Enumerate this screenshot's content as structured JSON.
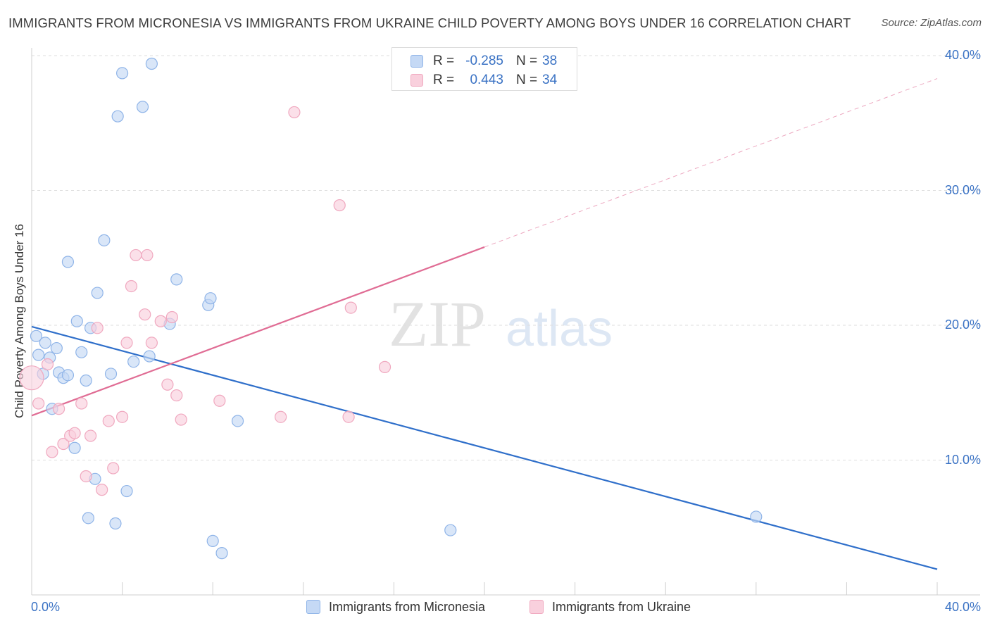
{
  "title": "IMMIGRANTS FROM MICRONESIA VS IMMIGRANTS FROM UKRAINE CHILD POVERTY AMONG BOYS UNDER 16 CORRELATION CHART",
  "source": "Source: ZipAtlas.com",
  "watermark": {
    "zip": "ZIP",
    "atlas": "atlas"
  },
  "legend": {
    "rows": [
      {
        "r_label": "R =",
        "r_value": "-0.285",
        "n_label": "N =",
        "n_value": "38"
      },
      {
        "r_label": "R =",
        "r_value": "0.443",
        "n_label": "N =",
        "n_value": "34"
      }
    ]
  },
  "chart_data": {
    "type": "scatter",
    "title": "IMMIGRANTS FROM MICRONESIA VS IMMIGRANTS FROM UKRAINE CHILD POVERTY AMONG BOYS UNDER 16 CORRELATION CHART",
    "xlabel": "",
    "ylabel": "Child Poverty Among Boys Under 16",
    "xlim": [
      0,
      40
    ],
    "ylim": [
      0,
      40
    ],
    "x_tick_labels": [
      "0.0%",
      "40.0%"
    ],
    "y_ticks": [
      10,
      20,
      30,
      40
    ],
    "y_tick_labels": [
      "10.0%",
      "20.0%",
      "30.0%",
      "40.0%"
    ],
    "grid": true,
    "legend_position": "top-center",
    "series": [
      {
        "name": "Immigrants from Micronesia",
        "color": "#8fb4e8",
        "fill": "#c5d9f5",
        "trend": {
          "x": [
            0,
            40
          ],
          "y": [
            19.9,
            1.9
          ],
          "color": "#2f6fca"
        },
        "points": [
          {
            "x": 0.2,
            "y": 19.2
          },
          {
            "x": 0.3,
            "y": 17.8
          },
          {
            "x": 0.5,
            "y": 16.4
          },
          {
            "x": 0.6,
            "y": 18.7
          },
          {
            "x": 0.8,
            "y": 17.6
          },
          {
            "x": 0.9,
            "y": 13.8
          },
          {
            "x": 1.1,
            "y": 18.3
          },
          {
            "x": 1.2,
            "y": 16.5
          },
          {
            "x": 1.4,
            "y": 16.1
          },
          {
            "x": 1.6,
            "y": 24.7
          },
          {
            "x": 1.6,
            "y": 16.3
          },
          {
            "x": 1.9,
            "y": 10.9
          },
          {
            "x": 2.0,
            "y": 20.3
          },
          {
            "x": 2.2,
            "y": 18.0
          },
          {
            "x": 2.4,
            "y": 15.9
          },
          {
            "x": 2.5,
            "y": 5.7
          },
          {
            "x": 2.6,
            "y": 19.8
          },
          {
            "x": 2.8,
            "y": 8.6
          },
          {
            "x": 2.9,
            "y": 22.4
          },
          {
            "x": 3.2,
            "y": 26.3
          },
          {
            "x": 3.5,
            "y": 16.4
          },
          {
            "x": 3.7,
            "y": 5.3
          },
          {
            "x": 3.8,
            "y": 35.5
          },
          {
            "x": 4.0,
            "y": 38.7
          },
          {
            "x": 4.2,
            "y": 7.7
          },
          {
            "x": 4.5,
            "y": 17.3
          },
          {
            "x": 4.9,
            "y": 36.2
          },
          {
            "x": 5.2,
            "y": 17.7
          },
          {
            "x": 5.3,
            "y": 39.4
          },
          {
            "x": 6.1,
            "y": 20.1
          },
          {
            "x": 6.4,
            "y": 23.4
          },
          {
            "x": 7.8,
            "y": 21.5
          },
          {
            "x": 7.9,
            "y": 22.0
          },
          {
            "x": 8.0,
            "y": 4.0
          },
          {
            "x": 8.4,
            "y": 3.1
          },
          {
            "x": 9.1,
            "y": 12.9
          },
          {
            "x": 18.5,
            "y": 4.8
          },
          {
            "x": 32.0,
            "y": 5.8
          }
        ]
      },
      {
        "name": "Immigrants from Ukraine",
        "color": "#f0a8bf",
        "fill": "#f9d0dd",
        "trend": {
          "x": [
            0,
            20
          ],
          "y": [
            13.3,
            25.8
          ],
          "color": "#e06c94"
        },
        "trend_ext": {
          "x": [
            20,
            40
          ],
          "y": [
            25.8,
            38.3
          ]
        },
        "points": [
          {
            "x": 0.0,
            "y": 16.1,
            "big": true
          },
          {
            "x": 0.3,
            "y": 14.2
          },
          {
            "x": 0.7,
            "y": 17.1
          },
          {
            "x": 0.9,
            "y": 10.6
          },
          {
            "x": 1.2,
            "y": 13.8
          },
          {
            "x": 1.4,
            "y": 11.2
          },
          {
            "x": 1.7,
            "y": 11.8
          },
          {
            "x": 1.9,
            "y": 12.0
          },
          {
            "x": 2.2,
            "y": 14.2
          },
          {
            "x": 2.4,
            "y": 8.8
          },
          {
            "x": 2.6,
            "y": 11.8
          },
          {
            "x": 2.9,
            "y": 19.8
          },
          {
            "x": 3.1,
            "y": 7.8
          },
          {
            "x": 3.4,
            "y": 12.9
          },
          {
            "x": 3.6,
            "y": 9.4
          },
          {
            "x": 4.0,
            "y": 13.2
          },
          {
            "x": 4.2,
            "y": 18.7
          },
          {
            "x": 4.4,
            "y": 22.9
          },
          {
            "x": 4.6,
            "y": 25.2
          },
          {
            "x": 5.0,
            "y": 20.8
          },
          {
            "x": 5.1,
            "y": 25.2
          },
          {
            "x": 5.3,
            "y": 18.7
          },
          {
            "x": 5.7,
            "y": 20.3
          },
          {
            "x": 6.0,
            "y": 15.6
          },
          {
            "x": 6.2,
            "y": 20.6
          },
          {
            "x": 6.4,
            "y": 14.8
          },
          {
            "x": 6.6,
            "y": 13.0
          },
          {
            "x": 8.3,
            "y": 14.4
          },
          {
            "x": 11.0,
            "y": 13.2
          },
          {
            "x": 11.6,
            "y": 35.8
          },
          {
            "x": 13.6,
            "y": 28.9
          },
          {
            "x": 14.0,
            "y": 13.2
          },
          {
            "x": 14.1,
            "y": 21.3
          },
          {
            "x": 15.6,
            "y": 16.9
          }
        ]
      }
    ]
  }
}
